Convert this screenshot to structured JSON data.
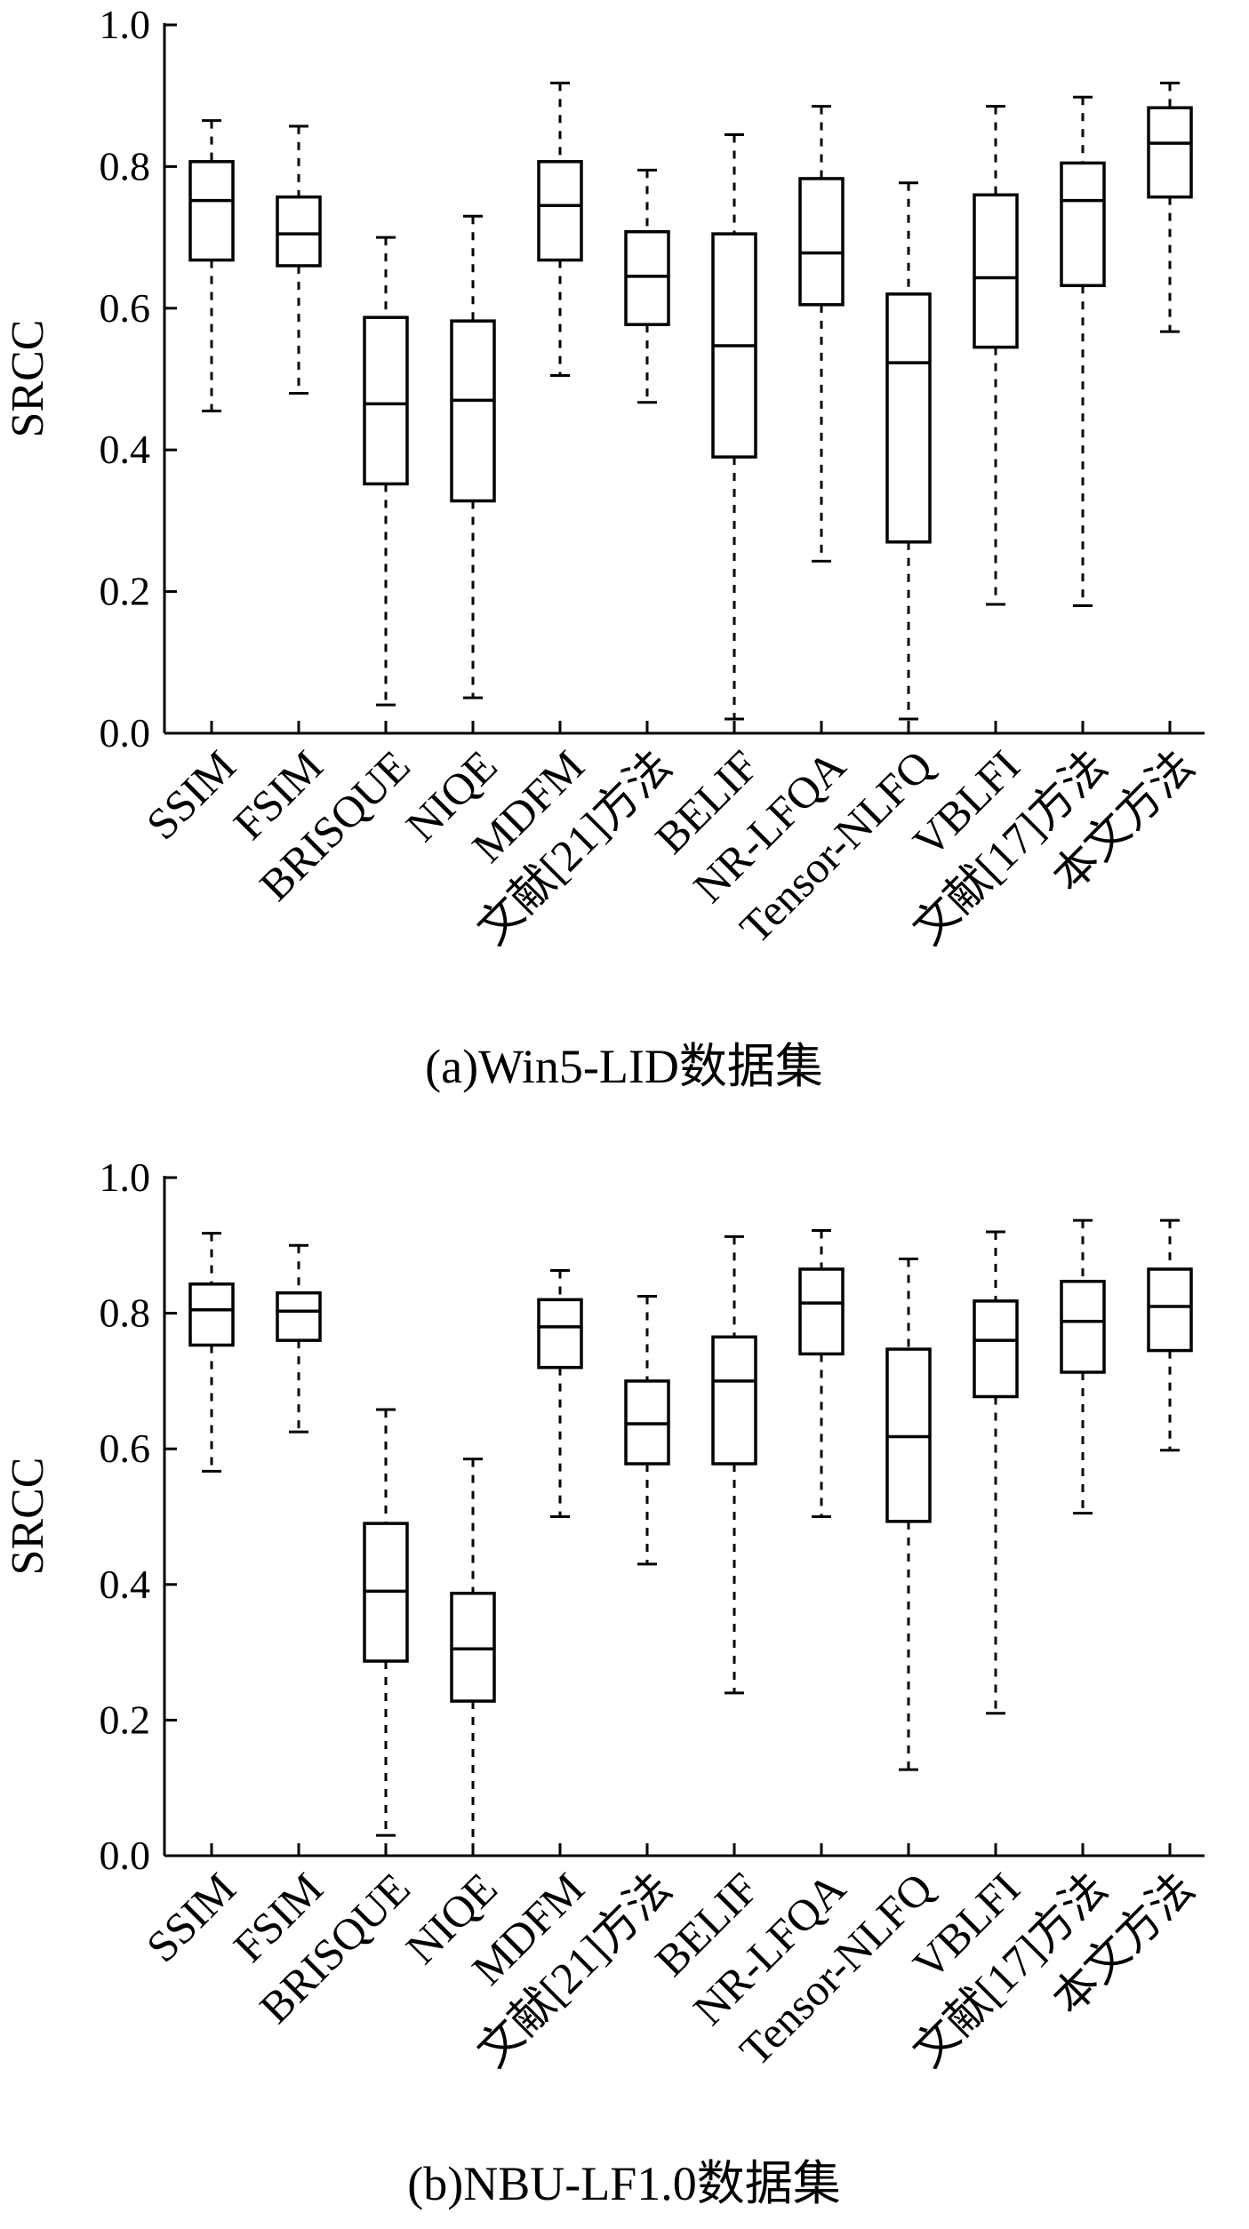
{
  "chart_data": [
    {
      "type": "box",
      "caption": "(a)Win5-LID数据集",
      "ylabel": "SRCC",
      "ylim": [
        0,
        1.0
      ],
      "yticks": [
        "0.0",
        "0.2",
        "0.4",
        "0.6",
        "0.8",
        "1.0"
      ],
      "categories": [
        "SSIM",
        "FSIM",
        "BRISQUE",
        "NIQE",
        "MDFM",
        "文献[21]方法",
        "BELIF",
        "NR-LFQA",
        "Tensor-NLFQ",
        "VBLFI",
        "文献[17]方法",
        "本文方法"
      ],
      "boxes": [
        {
          "min": 0.455,
          "q1": 0.668,
          "median": 0.752,
          "q3": 0.807,
          "max": 0.865
        },
        {
          "min": 0.48,
          "q1": 0.66,
          "median": 0.705,
          "q3": 0.757,
          "max": 0.857
        },
        {
          "min": 0.04,
          "q1": 0.352,
          "median": 0.465,
          "q3": 0.587,
          "max": 0.7
        },
        {
          "min": 0.05,
          "q1": 0.328,
          "median": 0.47,
          "q3": 0.582,
          "max": 0.73
        },
        {
          "min": 0.505,
          "q1": 0.668,
          "median": 0.745,
          "q3": 0.807,
          "max": 0.918
        },
        {
          "min": 0.467,
          "q1": 0.577,
          "median": 0.645,
          "q3": 0.708,
          "max": 0.795
        },
        {
          "min": 0.02,
          "q1": 0.39,
          "median": 0.547,
          "q3": 0.705,
          "max": 0.845
        },
        {
          "min": 0.243,
          "q1": 0.605,
          "median": 0.678,
          "q3": 0.783,
          "max": 0.885
        },
        {
          "min": 0.02,
          "q1": 0.27,
          "median": 0.523,
          "q3": 0.62,
          "max": 0.777
        },
        {
          "min": 0.182,
          "q1": 0.545,
          "median": 0.643,
          "q3": 0.76,
          "max": 0.885
        },
        {
          "min": 0.18,
          "q1": 0.632,
          "median": 0.752,
          "q3": 0.805,
          "max": 0.898
        },
        {
          "min": 0.567,
          "q1": 0.757,
          "median": 0.833,
          "q3": 0.883,
          "max": 0.918
        }
      ]
    },
    {
      "type": "box",
      "caption": "(b)NBU-LF1.0数据集",
      "ylabel": "SRCC",
      "ylim": [
        0,
        1.0
      ],
      "yticks": [
        "0.0",
        "0.2",
        "0.4",
        "0.6",
        "0.8",
        "1.0"
      ],
      "categories": [
        "SSIM",
        "FSIM",
        "BRISQUE",
        "NIQE",
        "MDFM",
        "文献[21]方法",
        "BELIF",
        "NR-LFQA",
        "Tensor-NLFQ",
        "VBLFI",
        "文献[17]方法",
        "本文方法"
      ],
      "boxes": [
        {
          "min": 0.567,
          "q1": 0.753,
          "median": 0.805,
          "q3": 0.843,
          "max": 0.918
        },
        {
          "min": 0.625,
          "q1": 0.76,
          "median": 0.803,
          "q3": 0.83,
          "max": 0.9
        },
        {
          "min": 0.03,
          "q1": 0.287,
          "median": 0.39,
          "q3": 0.49,
          "max": 0.658
        },
        {
          "min": 0.0,
          "q1": 0.228,
          "median": 0.305,
          "q3": 0.387,
          "max": 0.585
        },
        {
          "min": 0.5,
          "q1": 0.72,
          "median": 0.78,
          "q3": 0.82,
          "max": 0.863
        },
        {
          "min": 0.43,
          "q1": 0.578,
          "median": 0.637,
          "q3": 0.7,
          "max": 0.825
        },
        {
          "min": 0.24,
          "q1": 0.578,
          "median": 0.7,
          "q3": 0.765,
          "max": 0.913
        },
        {
          "min": 0.5,
          "q1": 0.74,
          "median": 0.815,
          "q3": 0.865,
          "max": 0.922
        },
        {
          "min": 0.127,
          "q1": 0.493,
          "median": 0.618,
          "q3": 0.747,
          "max": 0.88
        },
        {
          "min": 0.21,
          "q1": 0.677,
          "median": 0.76,
          "q3": 0.818,
          "max": 0.92
        },
        {
          "min": 0.505,
          "q1": 0.713,
          "median": 0.788,
          "q3": 0.847,
          "max": 0.937
        },
        {
          "min": 0.598,
          "q1": 0.745,
          "median": 0.81,
          "q3": 0.865,
          "max": 0.937
        }
      ]
    }
  ]
}
